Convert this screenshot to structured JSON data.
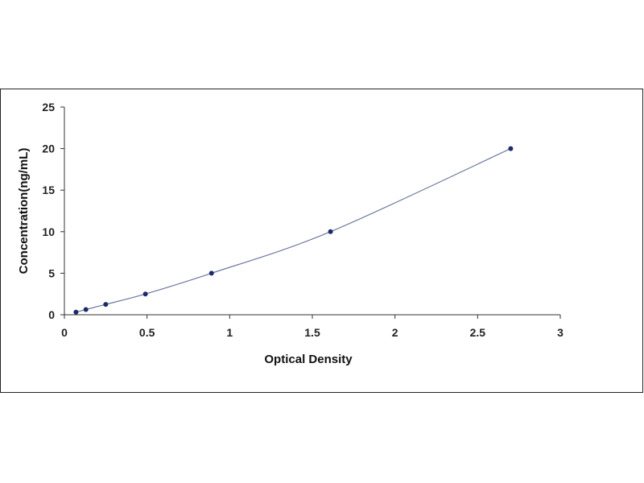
{
  "chart_data": {
    "type": "scatter",
    "title": "",
    "xlabel": "Optical Density",
    "ylabel": "Concentration(ng/mL)",
    "xlim": [
      0,
      3
    ],
    "ylim": [
      0,
      25
    ],
    "x_ticks": [
      "0",
      "0.5",
      "1",
      "1.5",
      "2",
      "2.5",
      "3"
    ],
    "y_ticks": [
      "0",
      "5",
      "10",
      "15",
      "20",
      "25"
    ],
    "grid": false,
    "legend": "none",
    "marker_color": "#1a2a6c",
    "curve_color": "#6b7a9a",
    "series": [
      {
        "points": [
          {
            "x": 0.07,
            "y": 0.31
          },
          {
            "x": 0.13,
            "y": 0.63
          },
          {
            "x": 0.25,
            "y": 1.25
          },
          {
            "x": 0.49,
            "y": 2.5
          },
          {
            "x": 0.89,
            "y": 5
          },
          {
            "x": 1.61,
            "y": 10
          },
          {
            "x": 2.7,
            "y": 20
          }
        ]
      }
    ],
    "fit_curve": "smooth"
  }
}
